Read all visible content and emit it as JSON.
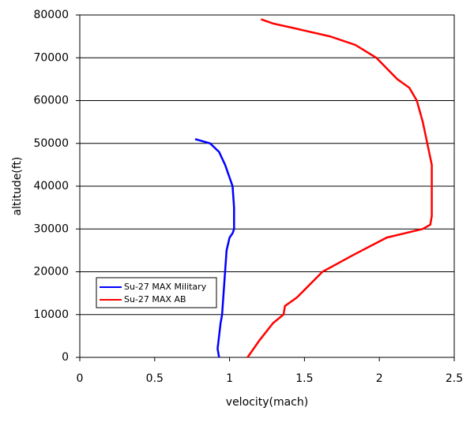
{
  "chart_data": {
    "type": "line",
    "x_label": "velocity(mach)",
    "y_label": "altitude(ft)",
    "series": [
      {
        "name": "Su-27 MAX Military",
        "color": "#0000ff",
        "x": [
          0.93,
          0.92,
          0.93,
          0.94,
          0.95,
          0.96,
          0.97,
          0.98,
          1.0,
          1.02,
          1.03,
          1.03,
          1.02,
          1.0,
          0.97,
          0.93,
          0.87,
          0.77
        ],
        "values": [
          0,
          2000,
          5000,
          8000,
          10000,
          15000,
          20000,
          25000,
          28000,
          29000,
          30000,
          35000,
          40000,
          42000,
          45000,
          48000,
          50000,
          51000
        ]
      },
      {
        "name": "Su-27 MAX AB",
        "color": "#ff0000",
        "x": [
          1.12,
          1.2,
          1.29,
          1.36,
          1.37,
          1.45,
          1.62,
          1.83,
          2.05,
          2.29,
          2.34,
          2.35,
          2.35,
          2.32,
          2.29,
          2.25,
          2.2,
          2.12,
          1.98,
          1.84,
          1.67,
          1.42,
          1.29,
          1.21
        ],
        "values": [
          0,
          4000,
          8000,
          10000,
          12000,
          14000,
          20000,
          24000,
          28000,
          30000,
          31000,
          33000,
          45000,
          50000,
          55000,
          60000,
          63000,
          65000,
          70000,
          73000,
          75000,
          77000,
          78000,
          79000
        ]
      }
    ],
    "xlim": [
      0,
      2.5
    ],
    "xticks": [
      0,
      0.5,
      1,
      1.5,
      2,
      2.5
    ],
    "ylim": [
      0,
      80000
    ],
    "yticks": [
      0,
      10000,
      20000,
      30000,
      40000,
      50000,
      60000,
      70000,
      80000
    ],
    "grid": true,
    "legend": "left"
  }
}
